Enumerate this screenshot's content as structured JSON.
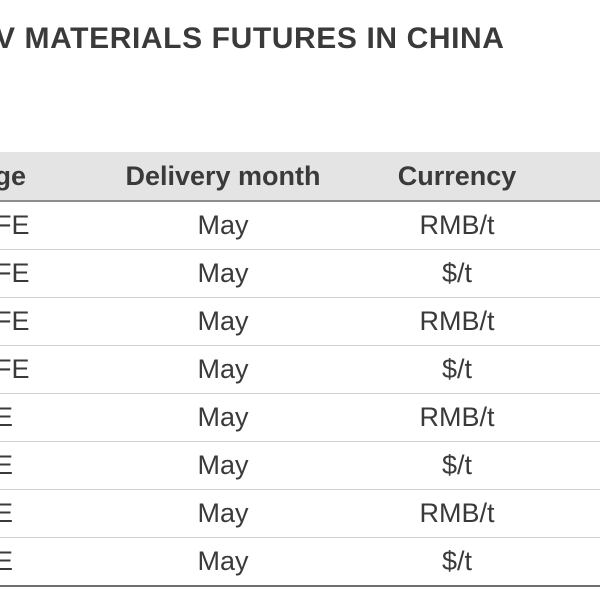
{
  "title": "V MATERIALS FUTURES IN CHINA",
  "table": {
    "headers": {
      "exchange": "nge",
      "delivery_month": "Delivery month",
      "currency": "Currency"
    },
    "rows": [
      {
        "exchange": "FE",
        "delivery_month": "May",
        "currency": "RMB/t"
      },
      {
        "exchange": "FE",
        "delivery_month": "May",
        "currency": "$/t"
      },
      {
        "exchange": "FE",
        "delivery_month": "May",
        "currency": "RMB/t"
      },
      {
        "exchange": "FE",
        "delivery_month": "May",
        "currency": "$/t"
      },
      {
        "exchange": "E",
        "delivery_month": "May",
        "currency": "RMB/t"
      },
      {
        "exchange": "E",
        "delivery_month": "May",
        "currency": "$/t"
      },
      {
        "exchange": "E",
        "delivery_month": "May",
        "currency": "RMB/t"
      },
      {
        "exchange": "E",
        "delivery_month": "May",
        "currency": "$/t"
      }
    ]
  }
}
